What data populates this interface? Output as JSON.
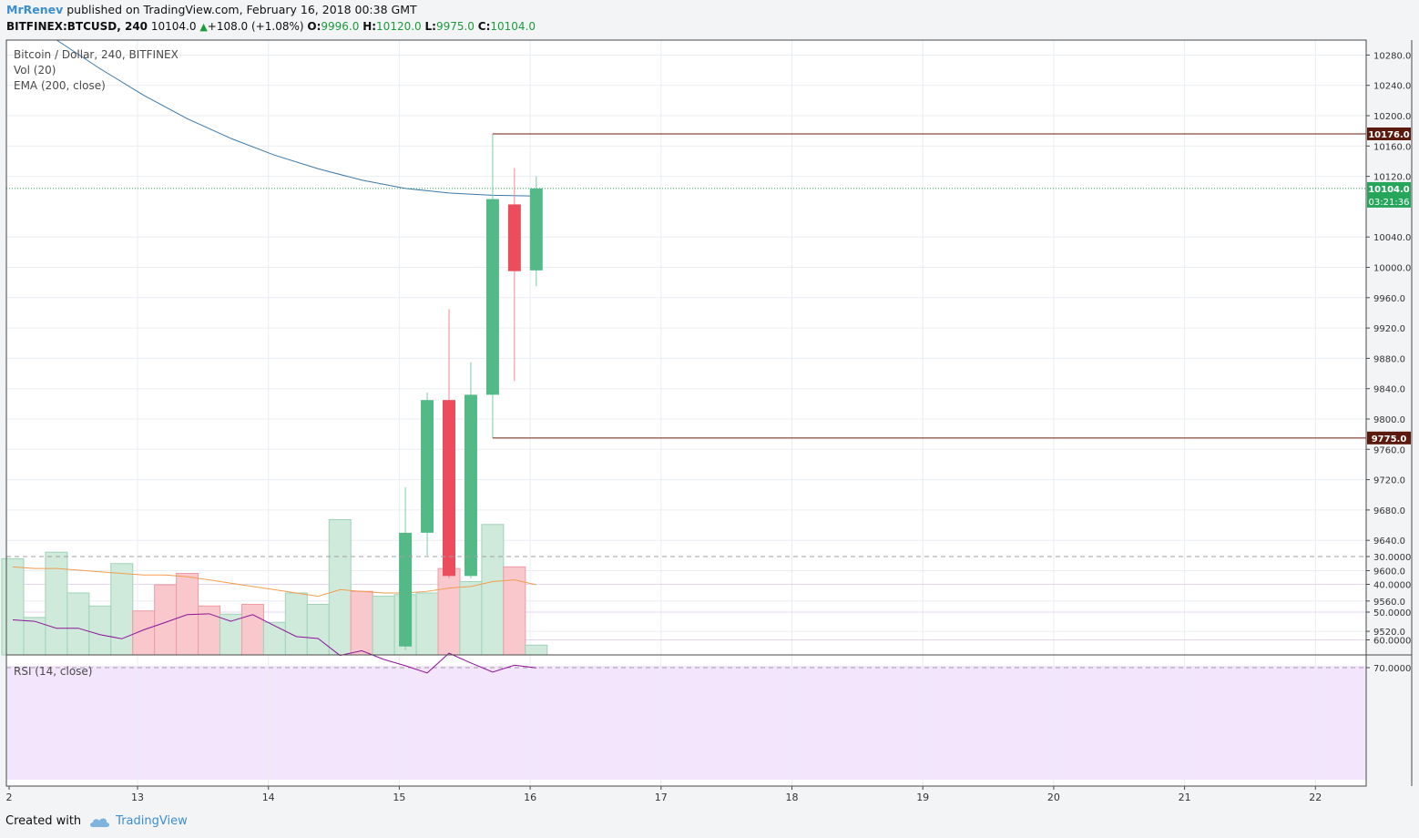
{
  "header": {
    "author": "MrRenev",
    "published_text": "published on TradingView.com, February 16, 2018 00:38 GMT",
    "symbol": "BITFINEX:BTCUSD, 240",
    "last": "10104.0",
    "change": "+108.0 (+1.08%)",
    "open_label": "O:",
    "open": "9996.0",
    "high_label": "H:",
    "high": "10120.0",
    "low_label": "L:",
    "low": "9975.0",
    "close_label": "C:",
    "close": "10104.0"
  },
  "legend": {
    "main": "Bitcoin / Dollar, 240, BITFINEX",
    "volume": "Vol (20)",
    "ema": "EMA (200, close)",
    "rsi": "RSI (14, close)"
  },
  "footer": {
    "created_with": "Created with",
    "brand": "TradingView"
  },
  "colors": {
    "up": "#53b987",
    "down": "#eb4d5c",
    "ema": "#3c78a8",
    "vol_ma": "#f19d51",
    "rsi": "#8e1599",
    "rsi_band": "#f3e5fb",
    "level_line": "#6b1d12",
    "level_label_bg": "#5c1a0e",
    "price_label_bg": "#26a65b"
  },
  "chart_data": {
    "type": "candlestick",
    "x_ticks": [
      "2",
      "13",
      "14",
      "15",
      "16",
      "17",
      "18",
      "19",
      "20",
      "21",
      "22"
    ],
    "price_axis": {
      "ticks": [
        10280,
        10240,
        10200,
        10160,
        10120,
        10040,
        10000,
        9960,
        9920,
        9880,
        9840,
        9800,
        9760,
        9720,
        9680,
        9640,
        9600,
        9560,
        9520
      ],
      "ylim": [
        9480,
        10300
      ]
    },
    "candles": [
      {
        "i": 18,
        "open": 9500,
        "high": 9710,
        "low": 9495,
        "close": 9650
      },
      {
        "i": 19,
        "open": 9650,
        "high": 9835,
        "low": 9620,
        "close": 9825
      },
      {
        "i": 20,
        "open": 9825,
        "high": 9945,
        "low": 9590,
        "close": 9593
      },
      {
        "i": 21,
        "open": 9593,
        "high": 9875,
        "low": 9590,
        "close": 9832
      },
      {
        "i": 22,
        "open": 9832,
        "high": 10176,
        "low": 9775,
        "close": 10090
      },
      {
        "i": 23,
        "open": 10083,
        "high": 10131,
        "low": 9850,
        "close": 9995
      },
      {
        "i": 24,
        "open": 9996,
        "high": 10120,
        "low": 9975,
        "close": 10104
      }
    ],
    "ema200": [
      {
        "i": 2,
        "v": 10300
      },
      {
        "i": 4,
        "v": 10262
      },
      {
        "i": 6,
        "v": 10227
      },
      {
        "i": 8,
        "v": 10196
      },
      {
        "i": 10,
        "v": 10170
      },
      {
        "i": 12,
        "v": 10148
      },
      {
        "i": 14,
        "v": 10130
      },
      {
        "i": 16,
        "v": 10115
      },
      {
        "i": 18,
        "v": 10104
      },
      {
        "i": 20,
        "v": 10098
      },
      {
        "i": 22,
        "v": 10095
      },
      {
        "i": 24,
        "v": 10094
      }
    ],
    "horizontal_levels": [
      {
        "price": 10176.0,
        "label": "10176.0"
      },
      {
        "price": 9775.0,
        "label": "9775.0"
      }
    ],
    "last_price": {
      "price": 10104.0,
      "label": "10104.0",
      "countdown": "03:21:36"
    },
    "volume": {
      "ylim": [
        0,
        100
      ],
      "bars": [
        {
          "i": 0,
          "v": 59,
          "dir": "up"
        },
        {
          "i": 1,
          "v": 23,
          "dir": "up"
        },
        {
          "i": 2,
          "v": 63,
          "dir": "up"
        },
        {
          "i": 3,
          "v": 38,
          "dir": "up"
        },
        {
          "i": 4,
          "v": 30,
          "dir": "up"
        },
        {
          "i": 5,
          "v": 56,
          "dir": "up"
        },
        {
          "i": 6,
          "v": 27,
          "dir": "down"
        },
        {
          "i": 7,
          "v": 43,
          "dir": "down"
        },
        {
          "i": 8,
          "v": 50,
          "dir": "down"
        },
        {
          "i": 9,
          "v": 30,
          "dir": "down"
        },
        {
          "i": 10,
          "v": 25,
          "dir": "up"
        },
        {
          "i": 11,
          "v": 31,
          "dir": "down"
        },
        {
          "i": 12,
          "v": 20,
          "dir": "up"
        },
        {
          "i": 13,
          "v": 38,
          "dir": "up"
        },
        {
          "i": 14,
          "v": 31,
          "dir": "up"
        },
        {
          "i": 15,
          "v": 83,
          "dir": "up"
        },
        {
          "i": 16,
          "v": 39,
          "dir": "down"
        },
        {
          "i": 17,
          "v": 36,
          "dir": "up"
        },
        {
          "i": 18,
          "v": 37,
          "dir": "up"
        },
        {
          "i": 19,
          "v": 38,
          "dir": "up"
        },
        {
          "i": 20,
          "v": 53,
          "dir": "down"
        },
        {
          "i": 21,
          "v": 45,
          "dir": "up"
        },
        {
          "i": 22,
          "v": 80,
          "dir": "up"
        },
        {
          "i": 23,
          "v": 54,
          "dir": "down"
        },
        {
          "i": 24,
          "v": 6,
          "dir": "up"
        }
      ],
      "ma20": [
        {
          "i": 0,
          "v": 54
        },
        {
          "i": 1,
          "v": 53
        },
        {
          "i": 2,
          "v": 53
        },
        {
          "i": 3,
          "v": 52
        },
        {
          "i": 4,
          "v": 51
        },
        {
          "i": 5,
          "v": 50
        },
        {
          "i": 6,
          "v": 49
        },
        {
          "i": 7,
          "v": 49
        },
        {
          "i": 8,
          "v": 48
        },
        {
          "i": 9,
          "v": 46
        },
        {
          "i": 10,
          "v": 44
        },
        {
          "i": 11,
          "v": 42
        },
        {
          "i": 12,
          "v": 40
        },
        {
          "i": 13,
          "v": 38
        },
        {
          "i": 14,
          "v": 36
        },
        {
          "i": 15,
          "v": 40
        },
        {
          "i": 16,
          "v": 39
        },
        {
          "i": 17,
          "v": 38
        },
        {
          "i": 18,
          "v": 38
        },
        {
          "i": 19,
          "v": 39
        },
        {
          "i": 20,
          "v": 41
        },
        {
          "i": 21,
          "v": 42
        },
        {
          "i": 22,
          "v": 45
        },
        {
          "i": 23,
          "v": 46
        },
        {
          "i": 24,
          "v": 43
        }
      ]
    },
    "rsi": {
      "ticks": [
        70,
        60,
        50,
        40,
        30
      ],
      "tick_labels": [
        "70.0000",
        "60.0000",
        "50.0000",
        "40.0000",
        "30.0000"
      ],
      "ylim": [
        27.5,
        72.5
      ],
      "band": [
        30,
        70
      ],
      "values": [
        {
          "i": 0,
          "v": 52.8
        },
        {
          "i": 1,
          "v": 53.3
        },
        {
          "i": 2,
          "v": 55.8
        },
        {
          "i": 3,
          "v": 55.8
        },
        {
          "i": 4,
          "v": 58.1
        },
        {
          "i": 5,
          "v": 59.6
        },
        {
          "i": 6,
          "v": 56.4
        },
        {
          "i": 7,
          "v": 53.7
        },
        {
          "i": 8,
          "v": 50.9
        },
        {
          "i": 9,
          "v": 50.6
        },
        {
          "i": 10,
          "v": 53.3
        },
        {
          "i": 11,
          "v": 50.9
        },
        {
          "i": 12,
          "v": 54.9
        },
        {
          "i": 13,
          "v": 58.8
        },
        {
          "i": 14,
          "v": 59.5
        },
        {
          "i": 15,
          "v": 65.6
        },
        {
          "i": 16,
          "v": 63.9
        },
        {
          "i": 17,
          "v": 67.0
        },
        {
          "i": 18,
          "v": 69.3
        },
        {
          "i": 19,
          "v": 71.9
        },
        {
          "i": 20,
          "v": 64.8
        },
        {
          "i": 21,
          "v": 68.3
        },
        {
          "i": 22,
          "v": 71.6
        },
        {
          "i": 23,
          "v": 69.1
        },
        {
          "i": 24,
          "v": 70.1
        }
      ]
    }
  }
}
